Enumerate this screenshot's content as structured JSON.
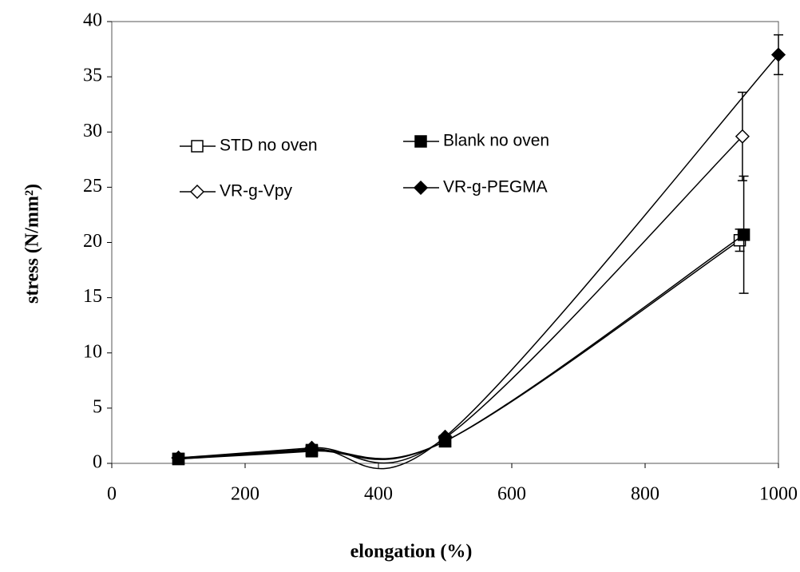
{
  "chart_data": {
    "type": "line",
    "x_label": "elongation (%)",
    "y_label": "stress (N/mm²)",
    "xlim": [
      0,
      1000
    ],
    "xticks": [
      0,
      200,
      400,
      600,
      800,
      1000
    ],
    "ylim": [
      0,
      40
    ],
    "yticks": [
      0,
      5,
      10,
      15,
      20,
      25,
      30,
      35,
      40
    ],
    "grid": false,
    "legend_position": "upper left",
    "series": [
      {
        "name": "STD no oven",
        "color": "#000000",
        "marker": "square-open",
        "x": [
          100,
          300,
          500,
          942
        ],
        "values": [
          0.4,
          1.2,
          2.0,
          20.2
        ],
        "errors": [
          null,
          null,
          null,
          1.0
        ]
      },
      {
        "name": "Blank no oven",
        "color": "#000000",
        "marker": "square-filled",
        "x": [
          100,
          300,
          500,
          948
        ],
        "values": [
          0.4,
          1.1,
          2.0,
          20.7
        ],
        "errors": [
          null,
          null,
          null,
          5.3
        ]
      },
      {
        "name": "VR-g-Vpy",
        "color": "#000000",
        "marker": "diamond-open",
        "x": [
          100,
          300,
          500,
          946
        ],
        "values": [
          0.5,
          1.4,
          2.3,
          29.6
        ],
        "errors": [
          null,
          null,
          null,
          4.0
        ]
      },
      {
        "name": "VR-g-PEGMA",
        "color": "#000000",
        "marker": "diamond-filled",
        "x": [
          100,
          300,
          500,
          1000
        ],
        "values": [
          0.5,
          1.3,
          2.4,
          37.0
        ],
        "errors": [
          null,
          null,
          null,
          1.8
        ]
      }
    ]
  }
}
